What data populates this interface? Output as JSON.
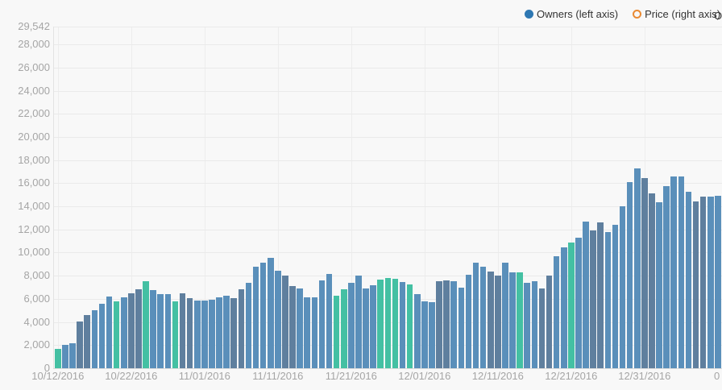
{
  "legend": {
    "items": [
      {
        "label": "Owners (left axis)",
        "marker": "filled-circle",
        "color": "#2e77b2"
      },
      {
        "label": "Price (right axis)",
        "marker": "open-circle",
        "color": "#e98a33"
      }
    ],
    "overflow_label": "O"
  },
  "chart_data": {
    "type": "bar",
    "title": "",
    "xlabel": "",
    "ylabel": "",
    "ylim": [
      0,
      29542
    ],
    "grid": true,
    "legend_position": "top-right",
    "series_name": "Owners",
    "bar_colors": {
      "n": "#5a8fba",
      "w": "#5f7f9e",
      "p": "#44c0a3"
    },
    "color_legend": {
      "n": "normal-day",
      "w": "weekend-day",
      "p": "promo-day"
    },
    "y_ticks": [
      {
        "v": 29542,
        "label": "29,542"
      },
      {
        "v": 28000,
        "label": "28,000"
      },
      {
        "v": 26000,
        "label": "26,000"
      },
      {
        "v": 24000,
        "label": "24,000"
      },
      {
        "v": 22000,
        "label": "22,000"
      },
      {
        "v": 20000,
        "label": "20,000"
      },
      {
        "v": 18000,
        "label": "18,000"
      },
      {
        "v": 16000,
        "label": "16,000"
      },
      {
        "v": 14000,
        "label": "14,000"
      },
      {
        "v": 12000,
        "label": "12,000"
      },
      {
        "v": 10000,
        "label": "10,000"
      },
      {
        "v": 8000,
        "label": "8,000"
      },
      {
        "v": 6000,
        "label": "6,000"
      },
      {
        "v": 4000,
        "label": "4,000"
      },
      {
        "v": 2000,
        "label": "2,000"
      },
      {
        "v": 0,
        "label": "0"
      }
    ],
    "x_ticks": [
      {
        "day_index": 0,
        "label": "10/12/2016"
      },
      {
        "day_index": 10,
        "label": "10/22/2016"
      },
      {
        "day_index": 20,
        "label": "11/01/2016"
      },
      {
        "day_index": 30,
        "label": "11/11/2016"
      },
      {
        "day_index": 40,
        "label": "11/21/2016"
      },
      {
        "day_index": 50,
        "label": "12/01/2016"
      },
      {
        "day_index": 60,
        "label": "12/11/2016"
      },
      {
        "day_index": 70,
        "label": "12/21/2016"
      },
      {
        "day_index": 80,
        "label": "12/31/2016"
      }
    ],
    "x_tick_clipped_label": "0",
    "days": [
      {
        "d": "10/12/2016",
        "v": 1700,
        "c": "p"
      },
      {
        "d": "10/13/2016",
        "v": 2000,
        "c": "n"
      },
      {
        "d": "10/14/2016",
        "v": 2150,
        "c": "n"
      },
      {
        "d": "10/15/2016",
        "v": 4050,
        "c": "w"
      },
      {
        "d": "10/16/2016",
        "v": 4600,
        "c": "w"
      },
      {
        "d": "10/17/2016",
        "v": 5050,
        "c": "n"
      },
      {
        "d": "10/18/2016",
        "v": 5600,
        "c": "n"
      },
      {
        "d": "10/19/2016",
        "v": 6200,
        "c": "n"
      },
      {
        "d": "10/20/2016",
        "v": 5800,
        "c": "p"
      },
      {
        "d": "10/21/2016",
        "v": 6100,
        "c": "n"
      },
      {
        "d": "10/22/2016",
        "v": 6450,
        "c": "w"
      },
      {
        "d": "10/23/2016",
        "v": 6800,
        "c": "w"
      },
      {
        "d": "10/24/2016",
        "v": 7500,
        "c": "p"
      },
      {
        "d": "10/25/2016",
        "v": 6750,
        "c": "n"
      },
      {
        "d": "10/26/2016",
        "v": 6400,
        "c": "n"
      },
      {
        "d": "10/27/2016",
        "v": 6400,
        "c": "n"
      },
      {
        "d": "10/28/2016",
        "v": 5800,
        "c": "p"
      },
      {
        "d": "10/29/2016",
        "v": 6450,
        "c": "w"
      },
      {
        "d": "10/30/2016",
        "v": 6050,
        "c": "w"
      },
      {
        "d": "10/31/2016",
        "v": 5850,
        "c": "n"
      },
      {
        "d": "11/01/2016",
        "v": 5850,
        "c": "n"
      },
      {
        "d": "11/02/2016",
        "v": 5950,
        "c": "n"
      },
      {
        "d": "11/03/2016",
        "v": 6150,
        "c": "n"
      },
      {
        "d": "11/04/2016",
        "v": 6250,
        "c": "n"
      },
      {
        "d": "11/05/2016",
        "v": 6050,
        "c": "w"
      },
      {
        "d": "11/06/2016",
        "v": 6800,
        "c": "w"
      },
      {
        "d": "11/07/2016",
        "v": 7400,
        "c": "n"
      },
      {
        "d": "11/08/2016",
        "v": 8800,
        "c": "n"
      },
      {
        "d": "11/09/2016",
        "v": 9150,
        "c": "n"
      },
      {
        "d": "11/10/2016",
        "v": 9550,
        "c": "n"
      },
      {
        "d": "11/11/2016",
        "v": 8400,
        "c": "n"
      },
      {
        "d": "11/12/2016",
        "v": 8000,
        "c": "w"
      },
      {
        "d": "11/13/2016",
        "v": 7100,
        "c": "w"
      },
      {
        "d": "11/14/2016",
        "v": 6900,
        "c": "n"
      },
      {
        "d": "11/15/2016",
        "v": 6100,
        "c": "n"
      },
      {
        "d": "11/16/2016",
        "v": 6100,
        "c": "n"
      },
      {
        "d": "11/17/2016",
        "v": 7600,
        "c": "n"
      },
      {
        "d": "11/18/2016",
        "v": 8150,
        "c": "n"
      },
      {
        "d": "11/19/2016",
        "v": 6300,
        "c": "p"
      },
      {
        "d": "11/20/2016",
        "v": 6850,
        "c": "p"
      },
      {
        "d": "11/21/2016",
        "v": 7400,
        "c": "n"
      },
      {
        "d": "11/22/2016",
        "v": 8000,
        "c": "n"
      },
      {
        "d": "11/23/2016",
        "v": 6900,
        "c": "n"
      },
      {
        "d": "11/24/2016",
        "v": 7150,
        "c": "n"
      },
      {
        "d": "11/25/2016",
        "v": 7650,
        "c": "p"
      },
      {
        "d": "11/26/2016",
        "v": 7800,
        "c": "p"
      },
      {
        "d": "11/27/2016",
        "v": 7750,
        "c": "p"
      },
      {
        "d": "11/28/2016",
        "v": 7450,
        "c": "n"
      },
      {
        "d": "11/29/2016",
        "v": 7250,
        "c": "p"
      },
      {
        "d": "11/30/2016",
        "v": 6400,
        "c": "n"
      },
      {
        "d": "12/01/2016",
        "v": 5800,
        "c": "n"
      },
      {
        "d": "12/02/2016",
        "v": 5700,
        "c": "n"
      },
      {
        "d": "12/03/2016",
        "v": 7550,
        "c": "w"
      },
      {
        "d": "12/04/2016",
        "v": 7600,
        "c": "w"
      },
      {
        "d": "12/05/2016",
        "v": 7550,
        "c": "n"
      },
      {
        "d": "12/06/2016",
        "v": 7000,
        "c": "n"
      },
      {
        "d": "12/07/2016",
        "v": 8100,
        "c": "n"
      },
      {
        "d": "12/08/2016",
        "v": 9150,
        "c": "n"
      },
      {
        "d": "12/09/2016",
        "v": 8800,
        "c": "n"
      },
      {
        "d": "12/10/2016",
        "v": 8350,
        "c": "w"
      },
      {
        "d": "12/11/2016",
        "v": 8000,
        "c": "w"
      },
      {
        "d": "12/12/2016",
        "v": 9150,
        "c": "n"
      },
      {
        "d": "12/13/2016",
        "v": 8300,
        "c": "n"
      },
      {
        "d": "12/14/2016",
        "v": 8300,
        "c": "p"
      },
      {
        "d": "12/15/2016",
        "v": 7400,
        "c": "n"
      },
      {
        "d": "12/16/2016",
        "v": 7550,
        "c": "n"
      },
      {
        "d": "12/17/2016",
        "v": 6900,
        "c": "w"
      },
      {
        "d": "12/18/2016",
        "v": 8000,
        "c": "w"
      },
      {
        "d": "12/19/2016",
        "v": 9700,
        "c": "n"
      },
      {
        "d": "12/20/2016",
        "v": 10450,
        "c": "n"
      },
      {
        "d": "12/21/2016",
        "v": 10900,
        "c": "p"
      },
      {
        "d": "12/22/2016",
        "v": 11300,
        "c": "n"
      },
      {
        "d": "12/23/2016",
        "v": 12700,
        "c": "n"
      },
      {
        "d": "12/24/2016",
        "v": 11900,
        "c": "w"
      },
      {
        "d": "12/25/2016",
        "v": 12600,
        "c": "w"
      },
      {
        "d": "12/26/2016",
        "v": 11800,
        "c": "n"
      },
      {
        "d": "12/27/2016",
        "v": 12400,
        "c": "n"
      },
      {
        "d": "12/28/2016",
        "v": 14000,
        "c": "n"
      },
      {
        "d": "12/29/2016",
        "v": 16100,
        "c": "n"
      },
      {
        "d": "12/30/2016",
        "v": 17300,
        "c": "n"
      },
      {
        "d": "12/31/2016",
        "v": 16450,
        "c": "w"
      },
      {
        "d": "01/01/2017",
        "v": 15150,
        "c": "w"
      },
      {
        "d": "01/02/2017",
        "v": 14350,
        "c": "n"
      },
      {
        "d": "01/03/2017",
        "v": 15750,
        "c": "n"
      },
      {
        "d": "01/04/2017",
        "v": 16600,
        "c": "n"
      },
      {
        "d": "01/05/2017",
        "v": 16600,
        "c": "n"
      },
      {
        "d": "01/06/2017",
        "v": 15250,
        "c": "n"
      },
      {
        "d": "01/07/2017",
        "v": 14450,
        "c": "w"
      },
      {
        "d": "01/08/2017",
        "v": 14850,
        "c": "w"
      },
      {
        "d": "01/09/2017",
        "v": 14850,
        "c": "n"
      },
      {
        "d": "01/10/2017",
        "v": 14900,
        "c": "n"
      }
    ]
  }
}
